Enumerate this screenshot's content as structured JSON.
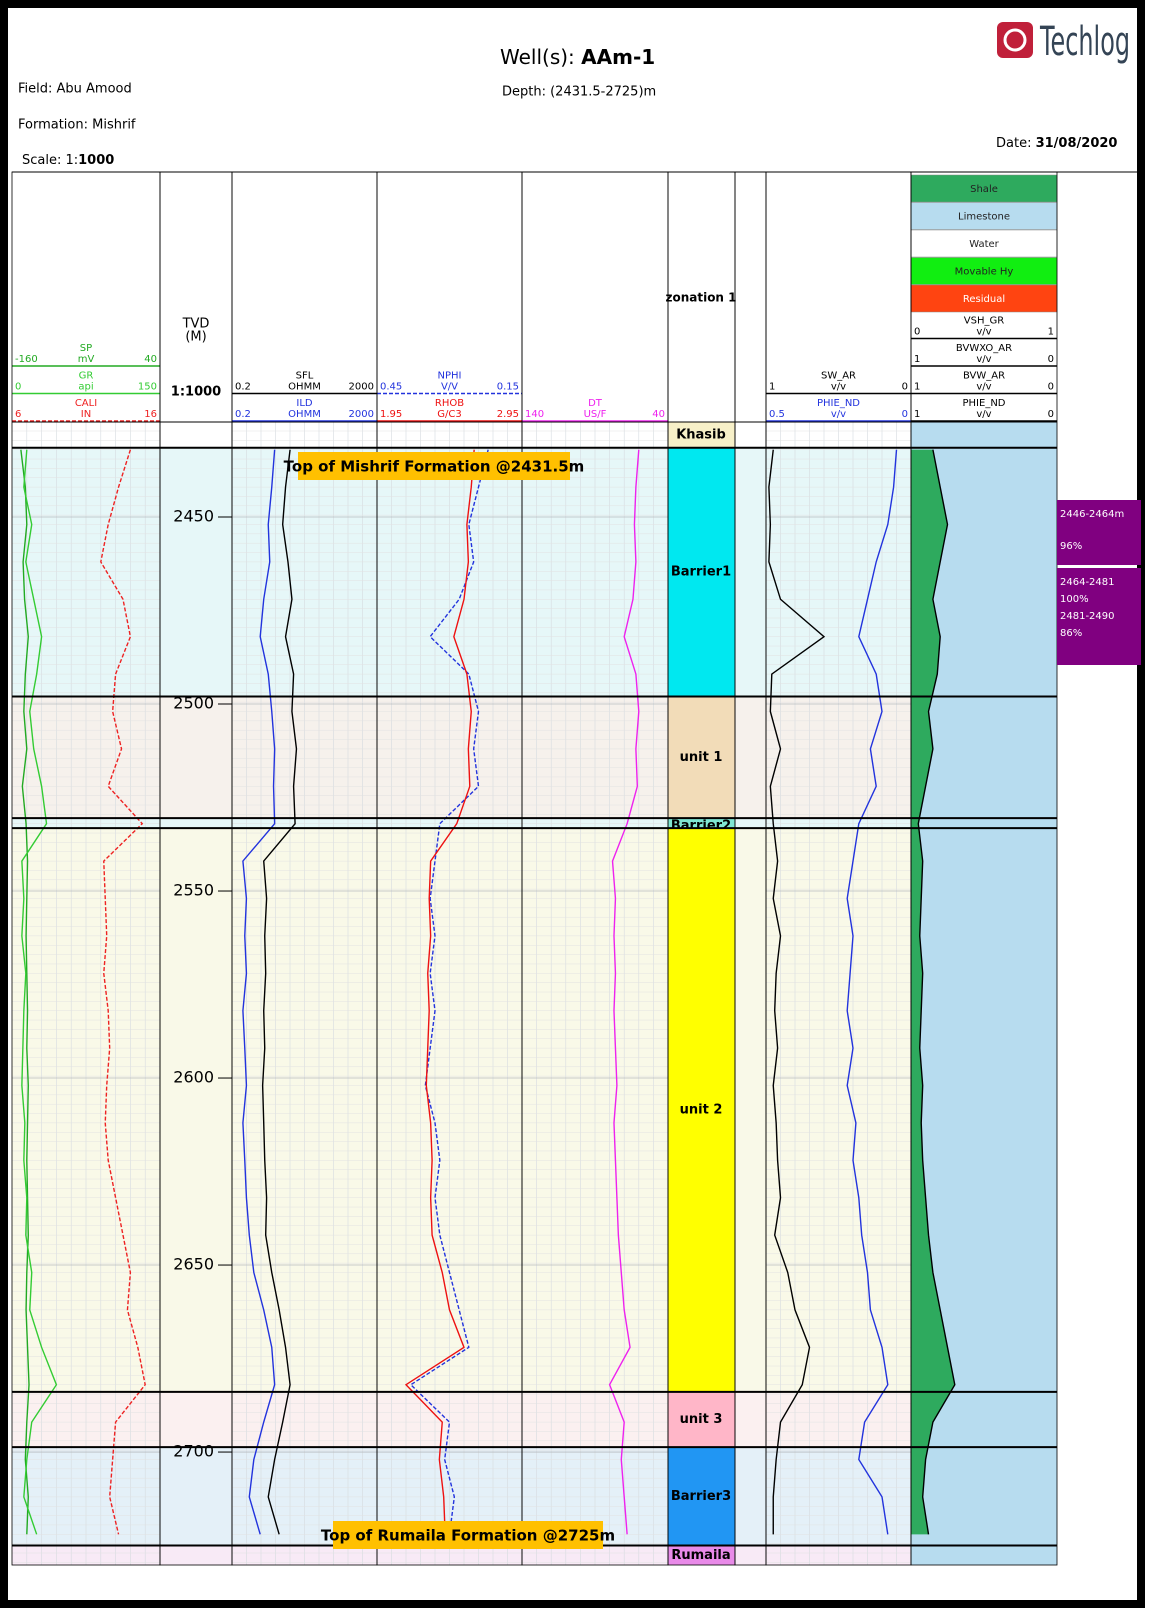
{
  "header": {
    "well_label": "Well(s): ",
    "well": "AAm-1",
    "depth": "Depth: (2431.5-2725)m",
    "field": "Field: Abu Amood",
    "formation": "Formation: Mishrif",
    "scale_label": "Scale: 1:",
    "scale": "1000",
    "date_label": "Date: ",
    "date": "31/08/2020",
    "logo": "Techlog"
  },
  "depth_track": {
    "title": "TVD",
    "unit": "(M)",
    "scale": "1:1000",
    "range": [
      2424.6,
      2730.2
    ],
    "ticks": [
      2450,
      2500,
      2550,
      2600,
      2650,
      2700
    ]
  },
  "depths": [
    2432,
    2442,
    2452,
    2462,
    2472,
    2482,
    2492,
    2502,
    2512,
    2522,
    2532,
    2542,
    2552,
    2562,
    2572,
    2582,
    2592,
    2602,
    2612,
    2622,
    2632,
    2642,
    2652,
    2662,
    2672,
    2682,
    2692,
    2702,
    2712,
    2722
  ],
  "tracks": [
    {
      "curves": [
        {
          "name": "SP",
          "unit": "mV",
          "left": -160,
          "right": 40,
          "color": "#22aa22",
          "dash": false,
          "log": false,
          "values": [
            -148,
            -142,
            -140,
            -145,
            -143,
            -138,
            -142,
            -144,
            -140,
            -146,
            -141,
            -139,
            -140,
            -141,
            -140,
            -139,
            -140,
            -138,
            -139,
            -140,
            -139,
            -138,
            -140,
            -141,
            -139,
            -137,
            -140,
            -142,
            -138,
            -140
          ]
        },
        {
          "name": "GR",
          "unit": "api",
          "left": 0,
          "right": 150,
          "color": "#33cc33",
          "dash": false,
          "log": false,
          "values": [
            15,
            12,
            20,
            14,
            22,
            30,
            25,
            18,
            22,
            30,
            35,
            10,
            12,
            10,
            14,
            12,
            11,
            10,
            13,
            12,
            15,
            14,
            20,
            18,
            30,
            45,
            20,
            15,
            12,
            25
          ]
        },
        {
          "name": "CALI",
          "unit": "IN",
          "left": 6,
          "right": 16,
          "color": "#ee2222",
          "dash": true,
          "log": false,
          "values": [
            14,
            13.2,
            12.5,
            12,
            13.5,
            14,
            13,
            12.8,
            13.4,
            12.5,
            14.8,
            12.2,
            12.3,
            12.4,
            12.2,
            12.5,
            12.6,
            12.4,
            12.3,
            12.5,
            13,
            13.5,
            14,
            13.8,
            14.5,
            15,
            13,
            12.8,
            12.6,
            13.2
          ]
        }
      ]
    },
    {
      "curves": [
        {
          "name": "SFL",
          "unit": "OHMM",
          "left": 0.2,
          "right": 2000,
          "color": "#000000",
          "dash": false,
          "log": true,
          "values": [
            8,
            6,
            5,
            7,
            9,
            6,
            10,
            9,
            12,
            10,
            11,
            1.5,
            1.8,
            1.6,
            1.7,
            1.5,
            1.6,
            1.4,
            1.5,
            1.6,
            1.8,
            1.7,
            2.5,
            4,
            6,
            8,
            5,
            3,
            2,
            4
          ]
        },
        {
          "name": "ILD",
          "unit": "OHMM",
          "left": 0.2,
          "right": 2000,
          "color": "#2233dd",
          "dash": false,
          "log": true,
          "values": [
            3,
            2.5,
            2,
            2.2,
            1.5,
            1.2,
            2,
            2.5,
            3,
            2.8,
            3,
            0.4,
            0.5,
            0.45,
            0.5,
            0.4,
            0.45,
            0.5,
            0.4,
            0.45,
            0.5,
            0.6,
            0.8,
            1.5,
            2.5,
            3,
            1.5,
            0.8,
            0.6,
            1.2
          ]
        }
      ]
    },
    {
      "curves": [
        {
          "name": "NPHI",
          "unit": "V/V",
          "left": 0.45,
          "right": 0.15,
          "color": "#2233dd",
          "dash": true,
          "log": false,
          "values": [
            0.22,
            0.24,
            0.26,
            0.25,
            0.28,
            0.34,
            0.26,
            0.24,
            0.25,
            0.24,
            0.32,
            0.33,
            0.34,
            0.33,
            0.34,
            0.33,
            0.34,
            0.35,
            0.33,
            0.32,
            0.33,
            0.32,
            0.3,
            0.28,
            0.26,
            0.38,
            0.3,
            0.31,
            0.29,
            0.3
          ]
        },
        {
          "name": "RHOB",
          "unit": "G/C3",
          "left": 1.95,
          "right": 2.95,
          "color": "#ee1111",
          "dash": false,
          "log": false,
          "values": [
            2.62,
            2.6,
            2.57,
            2.58,
            2.55,
            2.48,
            2.57,
            2.6,
            2.58,
            2.59,
            2.5,
            2.32,
            2.31,
            2.32,
            2.3,
            2.31,
            2.3,
            2.29,
            2.32,
            2.33,
            2.32,
            2.33,
            2.4,
            2.45,
            2.55,
            2.15,
            2.4,
            2.38,
            2.41,
            2.42
          ]
        }
      ]
    },
    {
      "curves": [
        {
          "name": "DT",
          "unit": "US/F",
          "left": 140,
          "right": 40,
          "color": "#ee22ee",
          "dash": false,
          "log": false,
          "values": [
            60,
            62,
            63,
            62,
            64,
            70,
            62,
            60,
            62,
            61,
            68,
            78,
            76,
            77,
            76,
            77,
            76,
            75,
            77,
            76,
            75,
            74,
            72,
            70,
            66,
            80,
            70,
            72,
            70,
            68
          ]
        }
      ]
    },
    {
      "curves": [
        {
          "name": "SW_AR",
          "unit": "v/v",
          "left": 1,
          "right": 0,
          "color": "#000000",
          "dash": false,
          "log": false,
          "values": [
            0.95,
            0.98,
            0.97,
            0.98,
            0.9,
            0.6,
            0.96,
            0.97,
            0.9,
            0.97,
            0.95,
            0.92,
            0.95,
            0.9,
            0.93,
            0.94,
            0.92,
            0.95,
            0.93,
            0.92,
            0.9,
            0.94,
            0.85,
            0.8,
            0.7,
            0.75,
            0.9,
            0.93,
            0.95,
            0.95
          ]
        },
        {
          "name": "PHIE_ND",
          "unit": "v/v",
          "left": 0.5,
          "right": 0,
          "color": "#2233dd",
          "dash": false,
          "log": false,
          "values": [
            0.05,
            0.06,
            0.08,
            0.12,
            0.15,
            0.18,
            0.12,
            0.1,
            0.14,
            0.12,
            0.18,
            0.2,
            0.22,
            0.2,
            0.21,
            0.22,
            0.2,
            0.22,
            0.19,
            0.2,
            0.18,
            0.17,
            0.15,
            0.14,
            0.1,
            0.08,
            0.16,
            0.18,
            0.1,
            0.08
          ]
        }
      ]
    },
    {
      "curves": [
        {
          "name": "VSH_GR",
          "unit": "v/v",
          "left": 0,
          "right": 1,
          "color": "#000000",
          "dash": false,
          "log": false,
          "fill": "#2eaa5e",
          "values": [
            0.15,
            0.2,
            0.25,
            0.2,
            0.15,
            0.2,
            0.18,
            0.12,
            0.15,
            0.1,
            0.05,
            0.08,
            0.07,
            0.06,
            0.08,
            0.07,
            0.06,
            0.08,
            0.07,
            0.08,
            0.1,
            0.12,
            0.15,
            0.2,
            0.25,
            0.3,
            0.15,
            0.1,
            0.08,
            0.12
          ]
        },
        {
          "name": "BVWXO_AR",
          "unit": "v/v",
          "left": 1,
          "right": 0,
          "color": "#000000",
          "dash": false,
          "log": false
        },
        {
          "name": "BVW_AR",
          "unit": "v/v",
          "left": 1,
          "right": 0,
          "color": "#000000",
          "dash": false,
          "log": false
        },
        {
          "name": "PHIE_ND",
          "unit": "v/v",
          "left": 1,
          "right": 0,
          "color": "#000000",
          "dash": false,
          "log": false
        }
      ]
    }
  ],
  "lithology_legend": [
    {
      "name": "Shale",
      "color": "#2eaa5e"
    },
    {
      "name": "Limestone",
      "color": "#b7dcef"
    },
    {
      "name": "Water",
      "color": "#ffffff"
    },
    {
      "name": "Movable Hy",
      "color": "#11ee11"
    },
    {
      "name": "Residual",
      "color": "#ff4411"
    }
  ],
  "zonation": {
    "title": "zonation 1",
    "zones": [
      {
        "name": "Khasib",
        "top": 2424.6,
        "base": 2431.5,
        "color": "#f7f0c8",
        "tint": "#ffffff"
      },
      {
        "name": "Barrier1",
        "top": 2431.5,
        "base": 2498,
        "color": "#00e8f0",
        "tint": "#e6f7f8"
      },
      {
        "name": "unit 1",
        "top": 2498,
        "base": 2530.5,
        "color": "#f2dcb8",
        "tint": "#f6f1ec"
      },
      {
        "name": "Barrier2",
        "top": 2530.5,
        "base": 2533.2,
        "color": "#7fe6d2",
        "tint": "#e6f7f8"
      },
      {
        "name": "unit 2",
        "top": 2533.2,
        "base": 2683.9,
        "color": "#ffff00",
        "tint": "#f9f9e8"
      },
      {
        "name": "unit 3",
        "top": 2683.9,
        "base": 2698.7,
        "color": "#ffb6c8",
        "tint": "#fbf0f0"
      },
      {
        "name": "Barrier3",
        "top": 2698.7,
        "base": 2725,
        "color": "#2196f3",
        "tint": "#e4f0f8"
      },
      {
        "name": "Rumaila",
        "top": 2725,
        "base": 2730.2,
        "color": "#e88ae8",
        "tint": "#f8eaf6"
      }
    ]
  },
  "annotations": [
    "Top of Mishrif Formation @2431.5m",
    "Top of Rumaila Formation @2725m"
  ],
  "intervals": [
    {
      "lines": [
        "2446-2464m",
        "96%"
      ]
    },
    {
      "lines": [
        "2464-2481",
        "100%",
        "2481-2490",
        "86%"
      ]
    }
  ]
}
